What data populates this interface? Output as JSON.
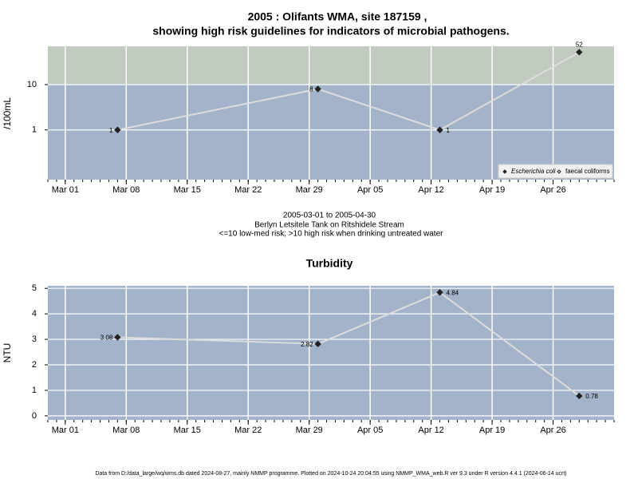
{
  "chart_data": [
    {
      "type": "line",
      "log_y": true,
      "title": [
        "2005 : Olifants WMA, site 187159 ,",
        "showing high risk guidelines for indicators of microbial pathogens."
      ],
      "caption": [
        "2005-03-01 to 2005-04-30",
        "Berlyn Letsitele Tank on Ritshidele Stream",
        "<=10 low-med risk; >10 high risk when drinking untreated water"
      ],
      "ylabel": "/100mL",
      "high_risk_threshold": 10,
      "x": [
        "2005-03-07",
        "2005-03-30",
        "2005-04-13",
        "2005-04-29"
      ],
      "series": [
        {
          "name": "Escherichia coli",
          "color": "#222222",
          "values": [
            1,
            8,
            1,
            52
          ]
        },
        {
          "name": "faecal coliforms",
          "color": "#222222",
          "values": [
            null,
            null,
            null,
            null
          ]
        }
      ],
      "xlim": [
        "2005-02-27",
        "2005-05-03"
      ],
      "xticks": [
        {
          "value": "2005-03-01",
          "label": "Mar 01"
        },
        {
          "value": "2005-03-08",
          "label": "Mar 08"
        },
        {
          "value": "2005-03-15",
          "label": "Mar 15"
        },
        {
          "value": "2005-03-22",
          "label": "Mar 22"
        },
        {
          "value": "2005-03-29",
          "label": "Mar 29"
        },
        {
          "value": "2005-04-05",
          "label": "Apr 05"
        },
        {
          "value": "2005-04-12",
          "label": "Apr 12"
        },
        {
          "value": "2005-04-19",
          "label": "Apr 19"
        },
        {
          "value": "2005-04-26",
          "label": "Apr 26"
        }
      ],
      "ylim": [
        0.08,
        70
      ],
      "yticks": [
        1,
        10
      ],
      "grid": true,
      "legend": "bottom-right"
    },
    {
      "type": "line",
      "log_y": false,
      "title": "Turbidity",
      "ylabel": "NTU",
      "x": [
        "2005-03-07",
        "2005-03-30",
        "2005-04-13",
        "2005-04-29"
      ],
      "series": [
        {
          "color": "#222222",
          "values": [
            3.08,
            2.82,
            4.84,
            0.78
          ]
        }
      ],
      "xlim": [
        "2005-02-27",
        "2005-05-03"
      ],
      "xticks": [
        {
          "value": "2005-03-01",
          "label": "Mar 01"
        },
        {
          "value": "2005-03-08",
          "label": "Mar 08"
        },
        {
          "value": "2005-03-15",
          "label": "Mar 15"
        },
        {
          "value": "2005-03-22",
          "label": "Mar 22"
        },
        {
          "value": "2005-03-29",
          "label": "Mar 29"
        },
        {
          "value": "2005-04-05",
          "label": "Apr 05"
        },
        {
          "value": "2005-04-12",
          "label": "Apr 12"
        },
        {
          "value": "2005-04-19",
          "label": "Apr 19"
        },
        {
          "value": "2005-04-26",
          "label": "Apr 26"
        }
      ],
      "ylim": [
        -0.16,
        5.1
      ],
      "yticks": [
        0,
        1,
        2,
        3,
        4,
        5
      ],
      "grid": true
    }
  ],
  "footer": "Data from D:/data_large/wq/wms.db dated 2024-08-27, mainly NMMP programme. Plotted on 2024-10-24 20:04:55 using NMMP_WMA_web.R ver 9.3 under R version 4.4.1 (2024-06-14 ucrt)"
}
